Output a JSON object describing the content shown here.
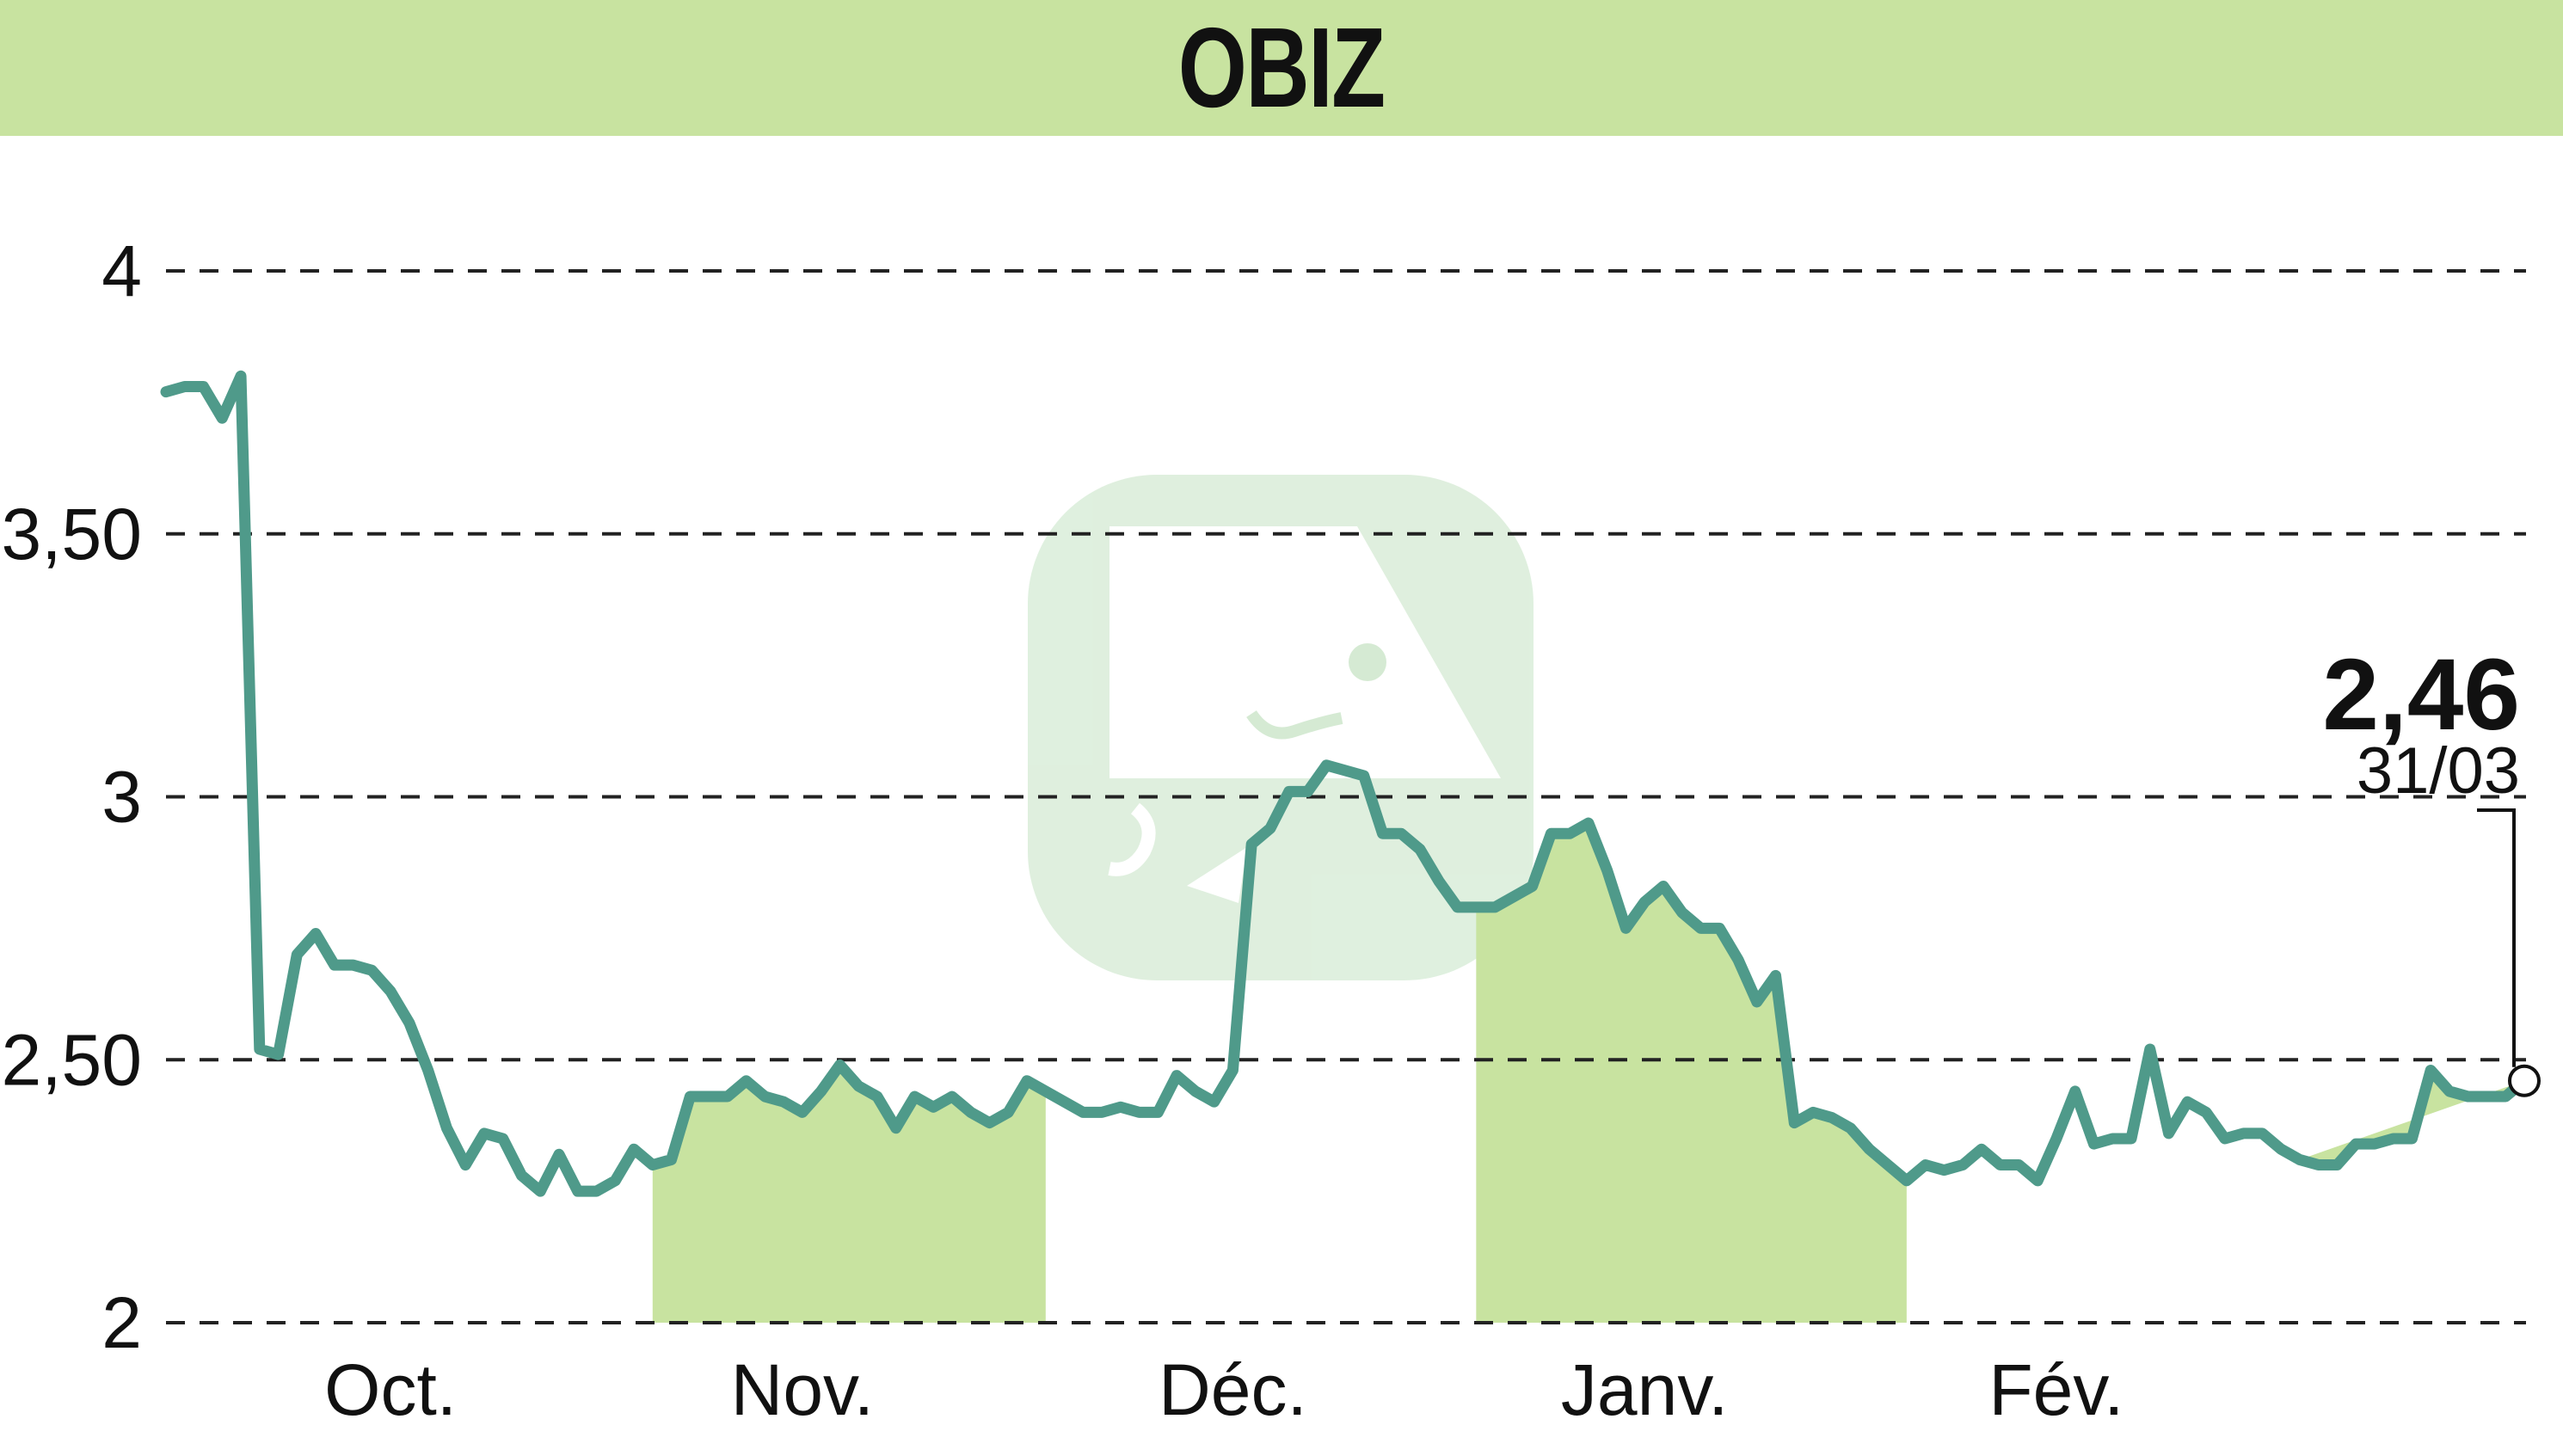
{
  "chart_data": {
    "type": "line",
    "title": "OBIZ",
    "xlabel": "",
    "ylabel": "",
    "ylim": [
      2,
      4.2
    ],
    "y_ticks": [
      {
        "value": 4,
        "label": "4"
      },
      {
        "value": 3.5,
        "label": "3,50"
      },
      {
        "value": 3,
        "label": "3"
      },
      {
        "value": 2.5,
        "label": "2,50"
      },
      {
        "value": 2,
        "label": "2"
      }
    ],
    "x_ticks": [
      {
        "index": 12,
        "label": "Oct."
      },
      {
        "index": 34,
        "label": "Nov."
      },
      {
        "index": 57,
        "label": "Déc."
      },
      {
        "index": 79,
        "label": "Janv."
      },
      {
        "index": 101,
        "label": "Fév."
      }
    ],
    "grid": true,
    "line_color": "#4f9a8a",
    "fill_color": "#c8e3a0",
    "shaded_month_spans": [
      [
        26,
        47
      ],
      [
        70,
        93
      ],
      [
        114,
        136
      ]
    ],
    "series": [
      {
        "values": [
          3.77,
          3.78,
          3.78,
          3.72,
          3.8,
          2.52,
          2.51,
          2.7,
          2.74,
          2.68,
          2.68,
          2.67,
          2.63,
          2.57,
          2.48,
          2.37,
          2.3,
          2.36,
          2.35,
          2.28,
          2.25,
          2.32,
          2.25,
          2.25,
          2.27,
          2.33,
          2.3,
          2.31,
          2.43,
          2.43,
          2.43,
          2.46,
          2.43,
          2.42,
          2.4,
          2.44,
          2.49,
          2.45,
          2.43,
          2.37,
          2.43,
          2.41,
          2.43,
          2.4,
          2.38,
          2.4,
          2.46,
          2.44,
          2.42,
          2.4,
          2.4,
          2.41,
          2.4,
          2.4,
          2.47,
          2.44,
          2.42,
          2.48,
          2.91,
          2.94,
          3.01,
          3.01,
          3.06,
          3.05,
          3.04,
          2.93,
          2.93,
          2.9,
          2.84,
          2.79,
          2.79,
          2.79,
          2.81,
          2.83,
          2.93,
          2.93,
          2.95,
          2.86,
          2.75,
          2.8,
          2.83,
          2.78,
          2.75,
          2.75,
          2.69,
          2.61,
          2.66,
          2.38,
          2.4,
          2.39,
          2.37,
          2.33,
          2.3,
          2.27,
          2.3,
          2.29,
          2.3,
          2.33,
          2.3,
          2.3,
          2.27,
          2.35,
          2.44,
          2.34,
          2.35,
          2.35,
          2.52,
          2.36,
          2.42,
          2.4,
          2.35,
          2.36,
          2.36,
          2.33,
          2.31,
          2.3,
          2.3,
          2.34,
          2.34,
          2.35,
          2.35,
          2.48,
          2.44,
          2.43,
          2.43,
          2.43,
          2.46
        ]
      }
    ],
    "last_value_label": "2,46",
    "last_date_label": "31/03"
  }
}
